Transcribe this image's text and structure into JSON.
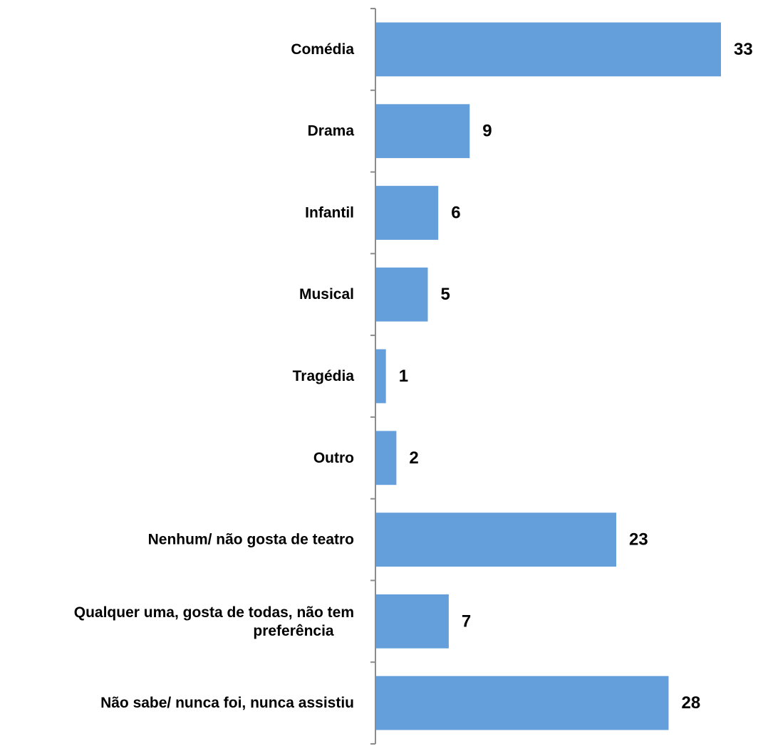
{
  "chart_data": {
    "type": "bar",
    "orientation": "horizontal",
    "categories": [
      "Comédia",
      "Drama",
      "Infantil",
      "Musical",
      "Tragédia",
      "Outro",
      "Nenhum/ não gosta de teatro",
      "Qualquer uma, gosta de todas, não tem preferência",
      "Não sabe/ nunca foi, nunca assistiu"
    ],
    "category_lines": [
      [
        "Comédia"
      ],
      [
        "Drama"
      ],
      [
        "Infantil"
      ],
      [
        "Musical"
      ],
      [
        "Tragédia"
      ],
      [
        "Outro"
      ],
      [
        "Nenhum/ não gosta de teatro"
      ],
      [
        "Qualquer uma, gosta de todas, não tem",
        "preferência"
      ],
      [
        "Não sabe/ nunca foi, nunca assistiu"
      ]
    ],
    "values": [
      33,
      9,
      6,
      5,
      1,
      2,
      23,
      7,
      28
    ],
    "data_labels": [
      "33",
      "9",
      "6",
      "5",
      "1",
      "2",
      "23",
      "7",
      "28"
    ],
    "title": "",
    "xlabel": "",
    "ylabel": "",
    "xlim": [
      0,
      33
    ],
    "grid": false,
    "legend": "none",
    "bar_color": "#659fdb",
    "axis_color": "#8c8c8c"
  }
}
